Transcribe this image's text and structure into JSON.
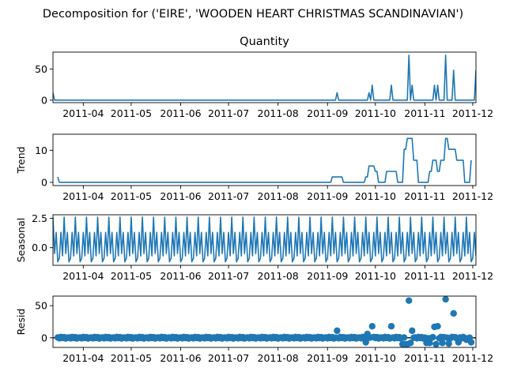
{
  "figure_title": "Decomposition for ('EIRE', 'WOODEN HEART CHRISTMAS SCANDINAVIAN')",
  "colors": {
    "series": "#1f77b4",
    "axes": "#000000",
    "background": "#ffffff"
  },
  "chart_data": [
    {
      "type": "line",
      "panel": "observed",
      "title": "Quantity",
      "ylabel": "",
      "x_start": "2011-03-13",
      "x_end": "2011-12-03",
      "xticks": [
        "2011-04",
        "2011-05",
        "2011-06",
        "2011-07",
        "2011-08",
        "2011-09",
        "2011-10",
        "2011-11",
        "2011-12"
      ],
      "ylim": [
        -4,
        77
      ],
      "yticks": [
        0,
        50
      ],
      "points": [
        [
          "2011-03-13",
          12
        ],
        [
          "2011-03-14",
          0
        ],
        [
          "2011-09-06",
          0
        ],
        [
          "2011-09-07",
          12
        ],
        [
          "2011-09-08",
          0
        ],
        [
          "2011-09-26",
          0
        ],
        [
          "2011-09-27",
          12
        ],
        [
          "2011-09-28",
          0
        ],
        [
          "2011-09-29",
          24
        ],
        [
          "2011-09-30",
          0
        ],
        [
          "2011-10-10",
          0
        ],
        [
          "2011-10-11",
          24
        ],
        [
          "2011-10-12",
          0
        ],
        [
          "2011-10-21",
          0
        ],
        [
          "2011-10-22",
          72
        ],
        [
          "2011-10-23",
          0
        ],
        [
          "2011-10-24",
          24
        ],
        [
          "2011-10-25",
          0
        ],
        [
          "2011-11-06",
          0
        ],
        [
          "2011-11-07",
          24
        ],
        [
          "2011-11-08",
          0
        ],
        [
          "2011-11-09",
          24
        ],
        [
          "2011-11-10",
          0
        ],
        [
          "2011-11-13",
          0
        ],
        [
          "2011-11-14",
          72
        ],
        [
          "2011-11-15",
          0
        ],
        [
          "2011-11-18",
          0
        ],
        [
          "2011-11-19",
          48
        ],
        [
          "2011-11-20",
          0
        ],
        [
          "2011-12-02",
          0
        ],
        [
          "2011-12-03",
          48
        ]
      ]
    },
    {
      "type": "line",
      "panel": "trend",
      "title": "",
      "ylabel": "Trend",
      "x_start": "2011-03-13",
      "x_end": "2011-12-03",
      "xticks": [
        "2011-04",
        "2011-05",
        "2011-06",
        "2011-07",
        "2011-08",
        "2011-09",
        "2011-10",
        "2011-11",
        "2011-12"
      ],
      "ylim": [
        -1,
        15
      ],
      "yticks": [
        0,
        10
      ],
      "points": [
        [
          "2011-03-16",
          1.7
        ],
        [
          "2011-03-17",
          0
        ],
        [
          "2011-09-03",
          0
        ],
        [
          "2011-09-04",
          1.7
        ],
        [
          "2011-09-10",
          1.7
        ],
        [
          "2011-09-11",
          0
        ],
        [
          "2011-09-24",
          0
        ],
        [
          "2011-09-25",
          1.7
        ],
        [
          "2011-09-26",
          1.7
        ],
        [
          "2011-09-27",
          5.1
        ],
        [
          "2011-09-30",
          5.1
        ],
        [
          "2011-10-01",
          3.4
        ],
        [
          "2011-10-02",
          3.4
        ],
        [
          "2011-10-03",
          0
        ],
        [
          "2011-10-07",
          0
        ],
        [
          "2011-10-08",
          3.4
        ],
        [
          "2011-10-14",
          3.4
        ],
        [
          "2011-10-15",
          0
        ],
        [
          "2011-10-18",
          0
        ],
        [
          "2011-10-19",
          10.3
        ],
        [
          "2011-10-20",
          10.3
        ],
        [
          "2011-10-21",
          13.7
        ],
        [
          "2011-10-24",
          13.7
        ],
        [
          "2011-10-25",
          6.9
        ],
        [
          "2011-10-27",
          6.9
        ],
        [
          "2011-10-28",
          0
        ],
        [
          "2011-11-03",
          0
        ],
        [
          "2011-11-04",
          3.4
        ],
        [
          "2011-11-05",
          3.4
        ],
        [
          "2011-11-06",
          6.9
        ],
        [
          "2011-11-08",
          6.9
        ],
        [
          "2011-11-09",
          3.4
        ],
        [
          "2011-11-10",
          3.4
        ],
        [
          "2011-11-11",
          6.9
        ],
        [
          "2011-11-13",
          6.9
        ],
        [
          "2011-11-14",
          13.7
        ],
        [
          "2011-11-15",
          13.7
        ],
        [
          "2011-11-16",
          10.3
        ],
        [
          "2011-11-20",
          10.3
        ],
        [
          "2011-11-21",
          6.9
        ],
        [
          "2011-11-25",
          6.9
        ],
        [
          "2011-11-26",
          0
        ],
        [
          "2011-11-29",
          0
        ],
        [
          "2011-11-30",
          6.9
        ]
      ]
    },
    {
      "type": "line",
      "panel": "seasonal",
      "title": "",
      "ylabel": "Seasonal",
      "x_start": "2011-03-13",
      "x_end": "2011-12-03",
      "xticks": [
        "2011-04",
        "2011-05",
        "2011-06",
        "2011-07",
        "2011-08",
        "2011-09",
        "2011-10",
        "2011-11",
        "2011-12"
      ],
      "ylim": [
        -1.5,
        2.8
      ],
      "yticks": [
        0.0,
        2.5
      ],
      "ytick_labels": [
        "0.0",
        "2.5"
      ],
      "period_days": 7,
      "weekly_pattern": [
        2.6,
        -0.5,
        1.3,
        -1.2,
        -0.9,
        1.3,
        -0.7
      ]
    },
    {
      "type": "scatter",
      "panel": "resid",
      "title": "",
      "ylabel": "Resid",
      "x_start": "2011-03-13",
      "x_end": "2011-12-03",
      "xticks": [
        "2011-04",
        "2011-05",
        "2011-06",
        "2011-07",
        "2011-08",
        "2011-09",
        "2011-10",
        "2011-11",
        "2011-12"
      ],
      "ylim": [
        -15,
        65
      ],
      "yticks": [
        0,
        50
      ],
      "baseline": 0,
      "notable_points": [
        [
          "2011-09-07",
          11
        ],
        [
          "2011-09-25",
          -7
        ],
        [
          "2011-09-26",
          6
        ],
        [
          "2011-09-29",
          18
        ],
        [
          "2011-10-11",
          18
        ],
        [
          "2011-10-18",
          -10
        ],
        [
          "2011-10-20",
          -10
        ],
        [
          "2011-10-21",
          -10
        ],
        [
          "2011-10-22",
          58
        ],
        [
          "2011-10-23",
          -8
        ],
        [
          "2011-10-24",
          11
        ],
        [
          "2011-11-02",
          -8
        ],
        [
          "2011-11-04",
          -8
        ],
        [
          "2011-11-07",
          17
        ],
        [
          "2011-11-08",
          -10
        ],
        [
          "2011-11-09",
          18
        ],
        [
          "2011-11-12",
          -8
        ],
        [
          "2011-11-14",
          60
        ],
        [
          "2011-11-16",
          -9
        ],
        [
          "2011-11-19",
          38
        ],
        [
          "2011-11-22",
          -7
        ],
        [
          "2011-11-27",
          -3
        ],
        [
          "2011-11-30",
          -7
        ]
      ],
      "background_points": "daily residuals near 0 from 2011-03-16 to 2011-11-30"
    }
  ]
}
